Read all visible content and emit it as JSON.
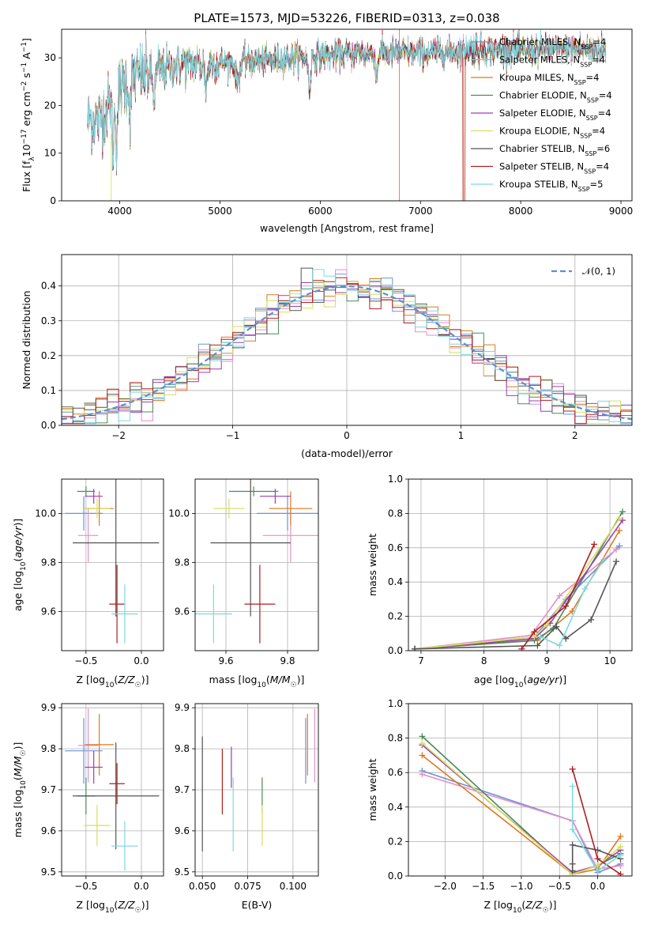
{
  "title": "PLATE=1573, MJD=53226, FIBERID=0313, z=0.038",
  "colors": {
    "Chabrier MILES": "#6b93d6",
    "Salpeter MILES": "#e58fc7",
    "Kroupa MILES": "#e0781e",
    "Chabrier ELODIE": "#4a8a5a",
    "Salpeter ELODIE": "#9a3fb5",
    "Kroupa ELODIE": "#d6e05a",
    "Chabrier STELIB": "#555555",
    "Salpeter STELIB": "#b01f1f",
    "Kroupa STELIB": "#7fd8e0"
  },
  "chart_data": [
    {
      "id": "spectrum",
      "type": "line",
      "title": "PLATE=1573, MJD=53226, FIBERID=0313, z=0.038",
      "xlabel": "wavelength [Angstrom, rest frame]",
      "ylabel": "Flux [f_λ 10^-17 erg cm^-2 s^-1 A^-1]",
      "xlim": [
        3420,
        9110
      ],
      "ylim": [
        0,
        36
      ],
      "xticks": [
        4000,
        5000,
        6000,
        7000,
        8000,
        9000
      ],
      "yticks": [
        0,
        10,
        20,
        30
      ],
      "legend": "top-right",
      "series": [
        {
          "name": "Chabrier MILES, N_SSP=4"
        },
        {
          "name": "Salpeter MILES, N_SSP=4"
        },
        {
          "name": "Kroupa MILES, N_SSP=4"
        },
        {
          "name": "Chabrier ELODIE, N_SSP=4"
        },
        {
          "name": "Salpeter ELODIE, N_SSP=4"
        },
        {
          "name": "Kroupa ELODIE, N_SSP=4"
        },
        {
          "name": "Chabrier STELIB, N_SSP=6"
        },
        {
          "name": "Salpeter STELIB, N_SSP=4"
        },
        {
          "name": "Kroupa STELIB, N_SSP=5"
        }
      ],
      "continuum": [
        [
          3680,
          17
        ],
        [
          3800,
          17
        ],
        [
          3950,
          22
        ],
        [
          4100,
          26
        ],
        [
          4300,
          27
        ],
        [
          4600,
          28.5
        ],
        [
          5000,
          29
        ],
        [
          5500,
          29.5
        ],
        [
          6000,
          30.5
        ],
        [
          6500,
          31
        ],
        [
          7000,
          31
        ],
        [
          7500,
          31.5
        ],
        [
          8000,
          31.5
        ],
        [
          8500,
          32
        ],
        [
          8850,
          31.5
        ]
      ],
      "wavelength_range": [
        3680,
        8850
      ]
    },
    {
      "id": "residuals",
      "type": "line",
      "xlabel": "(data-model)/error",
      "ylabel": "Normed distribution",
      "xlim": [
        -2.5,
        2.5
      ],
      "ylim": [
        0,
        0.49
      ],
      "xticks": [
        -2,
        -1,
        0,
        1,
        2
      ],
      "yticks": [
        0.0,
        0.1,
        0.2,
        0.3,
        0.4
      ],
      "legend": "top-right",
      "reference": {
        "name": "𝒩(0, 1)",
        "mu": 0,
        "sigma": 1
      },
      "bin_width": 0.1
    },
    {
      "id": "age-vs-Z",
      "type": "scatter",
      "xlabel": "Z [log10(Z/Z☉)]",
      "ylabel": "age  [log10(age/yr)]",
      "xlim": [
        -0.72,
        0.2
      ],
      "ylim": [
        9.44,
        10.14
      ],
      "xticks": [
        -0.5,
        0.0
      ],
      "yticks": [
        9.6,
        9.8,
        10.0
      ],
      "points": [
        {
          "model": "Chabrier MILES",
          "x": -0.52,
          "xerr": 0.17,
          "y": 10.0,
          "yerr": 0.07
        },
        {
          "model": "Salpeter MILES",
          "x": -0.48,
          "xerr": 0.09,
          "y": 9.91,
          "yerr": 0.11
        },
        {
          "model": "Kroupa MILES",
          "x": -0.38,
          "xerr": 0.13,
          "y": 10.02,
          "yerr": 0.07
        },
        {
          "model": "Chabrier ELODIE",
          "x": -0.5,
          "xerr": 0.08,
          "y": 10.09,
          "yerr": 0.02
        },
        {
          "model": "Salpeter ELODIE",
          "x": -0.43,
          "xerr": 0.08,
          "y": 10.07,
          "yerr": 0.03
        },
        {
          "model": "Kroupa ELODIE",
          "x": -0.4,
          "xerr": 0.12,
          "y": 10.02,
          "yerr": 0.04
        },
        {
          "model": "Chabrier STELIB",
          "x": -0.23,
          "xerr": 0.39,
          "y": 9.88,
          "yerr": 0.3
        },
        {
          "model": "Salpeter STELIB",
          "x": -0.22,
          "xerr": 0.07,
          "y": 9.63,
          "yerr": 0.16
        },
        {
          "model": "Kroupa STELIB",
          "x": -0.15,
          "xerr": 0.12,
          "y": 9.59,
          "yerr": 0.12
        }
      ]
    },
    {
      "id": "age-vs-mass",
      "type": "scatter",
      "xlabel": "mass [log10(M/M☉)]",
      "ylabel": "",
      "xlim": [
        9.5,
        9.9
      ],
      "ylim": [
        9.44,
        10.14
      ],
      "xticks": [
        9.6,
        9.8
      ],
      "yticks": [
        9.6,
        9.8,
        10.0
      ],
      "points": [
        {
          "model": "Chabrier MILES",
          "x": 9.8,
          "xerr": 0.1,
          "y": 10.0,
          "yerr": 0.07
        },
        {
          "model": "Salpeter MILES",
          "x": 9.81,
          "xerr": 0.09,
          "y": 9.91,
          "yerr": 0.11
        },
        {
          "model": "Kroupa MILES",
          "x": 9.81,
          "xerr": 0.07,
          "y": 10.02,
          "yerr": 0.07
        },
        {
          "model": "Chabrier ELODIE",
          "x": 9.69,
          "xerr": 0.08,
          "y": 10.09,
          "yerr": 0.02
        },
        {
          "model": "Salpeter ELODIE",
          "x": 9.76,
          "xerr": 0.05,
          "y": 10.07,
          "yerr": 0.03
        },
        {
          "model": "Kroupa ELODIE",
          "x": 9.61,
          "xerr": 0.05,
          "y": 10.02,
          "yerr": 0.04
        },
        {
          "model": "Chabrier STELIB",
          "x": 9.68,
          "xerr": 0.13,
          "y": 9.88,
          "yerr": 0.3
        },
        {
          "model": "Salpeter STELIB",
          "x": 9.71,
          "xerr": 0.05,
          "y": 9.63,
          "yerr": 0.16
        },
        {
          "model": "Kroupa STELIB",
          "x": 9.56,
          "xerr": 0.06,
          "y": 9.59,
          "yerr": 0.12
        }
      ]
    },
    {
      "id": "mass-weight-vs-age",
      "type": "line",
      "xlabel": "age  [log10(age/yr)]",
      "ylabel": "mass weight",
      "xlim": [
        6.8,
        10.35
      ],
      "ylim": [
        0,
        1
      ],
      "xticks": [
        7,
        8,
        9,
        10
      ],
      "yticks": [
        0.0,
        0.2,
        0.4,
        0.6,
        0.8,
        1.0
      ],
      "series": [
        {
          "model": "Chabrier MILES",
          "x": [
            6.9,
            8.8,
            9.3,
            10.15
          ],
          "y": [
            0.01,
            0.08,
            0.3,
            0.61
          ]
        },
        {
          "model": "Salpeter MILES",
          "x": [
            6.9,
            8.75,
            9.2,
            10.1
          ],
          "y": [
            0.01,
            0.09,
            0.32,
            0.59
          ]
        },
        {
          "model": "Kroupa MILES",
          "x": [
            6.9,
            8.85,
            9.4,
            10.15
          ],
          "y": [
            0.01,
            0.06,
            0.23,
            0.7
          ]
        },
        {
          "model": "Chabrier ELODIE",
          "x": [
            6.9,
            8.8,
            9.1,
            10.2
          ],
          "y": [
            0.01,
            0.06,
            0.13,
            0.81
          ]
        },
        {
          "model": "Salpeter ELODIE",
          "x": [
            6.9,
            8.8,
            9.05,
            10.2
          ],
          "y": [
            0.01,
            0.07,
            0.16,
            0.76
          ]
        },
        {
          "model": "Kroupa ELODIE",
          "x": [
            6.9,
            8.8,
            9.0,
            10.15
          ],
          "y": [
            0.01,
            0.08,
            0.15,
            0.77
          ]
        },
        {
          "model": "Chabrier STELIB",
          "x": [
            6.9,
            8.85,
            9.15,
            9.3,
            9.7,
            10.1
          ],
          "y": [
            0.01,
            0.03,
            0.14,
            0.07,
            0.18,
            0.52
          ]
        },
        {
          "model": "Salpeter STELIB",
          "x": [
            8.6,
            8.8,
            9.3,
            9.75
          ],
          "y": [
            0.01,
            0.11,
            0.26,
            0.62
          ]
        },
        {
          "model": "Kroupa STELIB",
          "x": [
            8.9,
            9.2,
            9.6,
            9.9
          ],
          "y": [
            0.08,
            0.03,
            0.36,
            0.53
          ]
        }
      ]
    },
    {
      "id": "mass-vs-Z",
      "type": "scatter",
      "xlabel": "Z [log10(Z/Z☉)]",
      "ylabel": "mass [log10(M/M☉)]",
      "xlim": [
        -0.72,
        0.2
      ],
      "ylim": [
        9.49,
        9.91
      ],
      "xticks": [
        -0.5,
        0.0
      ],
      "yticks": [
        9.5,
        9.6,
        9.7,
        9.8,
        9.9
      ],
      "points": [
        {
          "model": "Chabrier MILES",
          "x": -0.52,
          "xerr": 0.17,
          "y": 9.795,
          "yerr": 0.08
        },
        {
          "model": "Salpeter MILES",
          "x": -0.48,
          "xerr": 0.09,
          "y": 9.808,
          "yerr": 0.09
        },
        {
          "model": "Kroupa MILES",
          "x": -0.38,
          "xerr": 0.13,
          "y": 9.81,
          "yerr": 0.075
        },
        {
          "model": "Chabrier ELODIE",
          "x": -0.5,
          "xerr": 0.08,
          "y": 9.685,
          "yerr": 0.045
        },
        {
          "model": "Salpeter ELODIE",
          "x": -0.43,
          "xerr": 0.08,
          "y": 9.755,
          "yerr": 0.04
        },
        {
          "model": "Kroupa ELODIE",
          "x": -0.4,
          "xerr": 0.12,
          "y": 9.613,
          "yerr": 0.05
        },
        {
          "model": "Chabrier STELIB",
          "x": -0.23,
          "xerr": 0.39,
          "y": 9.685,
          "yerr": 0.13
        },
        {
          "model": "Salpeter STELIB",
          "x": -0.22,
          "xerr": 0.07,
          "y": 9.715,
          "yerr": 0.05
        },
        {
          "model": "Kroupa STELIB",
          "x": -0.15,
          "xerr": 0.12,
          "y": 9.563,
          "yerr": 0.06
        }
      ]
    },
    {
      "id": "mass-vs-ebv",
      "type": "scatter",
      "xlabel": "E(B-V)",
      "ylabel": "",
      "xlim": [
        0.046,
        0.114
      ],
      "ylim": [
        9.49,
        9.91
      ],
      "xticks": [
        0.05,
        0.075,
        0.1
      ],
      "yticks": [
        9.5,
        9.6,
        9.7,
        9.8,
        9.9
      ],
      "points": [
        {
          "model": "Chabrier MILES",
          "x": 0.107,
          "xerr": 0,
          "y": 9.795,
          "yerr": 0.08
        },
        {
          "model": "Salpeter MILES",
          "x": 0.112,
          "xerr": 0,
          "y": 9.808,
          "yerr": 0.09
        },
        {
          "model": "Kroupa MILES",
          "x": 0.108,
          "xerr": 0,
          "y": 9.81,
          "yerr": 0.075
        },
        {
          "model": "Chabrier ELODIE",
          "x": 0.083,
          "xerr": 0,
          "y": 9.685,
          "yerr": 0.045
        },
        {
          "model": "Salpeter ELODIE",
          "x": 0.066,
          "xerr": 0,
          "y": 9.755,
          "yerr": 0.05
        },
        {
          "model": "Kroupa ELODIE",
          "x": 0.083,
          "xerr": 0,
          "y": 9.613,
          "yerr": 0.05
        },
        {
          "model": "Chabrier STELIB",
          "x": 0.05,
          "xerr": 0,
          "y": 9.69,
          "yerr": 0.14
        },
        {
          "model": "Salpeter STELIB",
          "x": 0.061,
          "xerr": 0,
          "y": 9.72,
          "yerr": 0.08
        },
        {
          "model": "Kroupa STELIB",
          "x": 0.067,
          "xerr": 0,
          "y": 9.64,
          "yerr": 0.09
        }
      ]
    },
    {
      "id": "mass-weight-vs-Z",
      "type": "line",
      "xlabel": "Z [log10(Z/Z☉)]",
      "ylabel": "mass weight",
      "xlim": [
        -2.48,
        0.45
      ],
      "ylim": [
        0,
        1
      ],
      "xticks": [
        -2.0,
        -1.5,
        -1.0,
        -0.5,
        0.0
      ],
      "yticks": [
        0.0,
        0.2,
        0.4,
        0.6,
        0.8,
        1.0
      ],
      "series": [
        {
          "model": "Chabrier MILES",
          "x": [
            -2.3,
            -0.33,
            0.0,
            0.3
          ],
          "y": [
            0.61,
            0.32,
            0.02,
            0.07
          ]
        },
        {
          "model": "Salpeter MILES",
          "x": [
            -2.3,
            -0.33,
            0.0,
            0.3
          ],
          "y": [
            0.59,
            0.32,
            0.04,
            0.06
          ]
        },
        {
          "model": "Kroupa MILES",
          "x": [
            -2.3,
            -0.33,
            0.0,
            0.3
          ],
          "y": [
            0.7,
            0.01,
            0.04,
            0.23
          ]
        },
        {
          "model": "Chabrier ELODIE",
          "x": [
            -2.3,
            -0.33,
            0.0,
            0.3
          ],
          "y": [
            0.81,
            0.01,
            0.06,
            0.13
          ]
        },
        {
          "model": "Salpeter ELODIE",
          "x": [
            -2.3,
            -0.33,
            0.0,
            0.3
          ],
          "y": [
            0.76,
            0.02,
            0.06,
            0.15
          ]
        },
        {
          "model": "Kroupa ELODIE",
          "x": [
            -2.3,
            -0.33,
            0.0,
            0.3
          ],
          "y": [
            0.77,
            0.01,
            0.06,
            0.17
          ]
        },
        {
          "model": "Chabrier STELIB",
          "x": [
            -0.33,
            -0.33,
            -0.33,
            0.0,
            0.3
          ],
          "y": [
            0.03,
            0.07,
            0.18,
            0.15,
            0.1
          ]
        },
        {
          "model": "Salpeter STELIB",
          "x": [
            -0.33,
            0.0,
            0.3
          ],
          "y": [
            0.62,
            0.1,
            0.01
          ]
        },
        {
          "model": "Kroupa STELIB",
          "x": [
            -0.33,
            -0.33,
            0.0,
            0.3
          ],
          "y": [
            0.52,
            0.27,
            0.03,
            0.12
          ]
        }
      ]
    }
  ]
}
